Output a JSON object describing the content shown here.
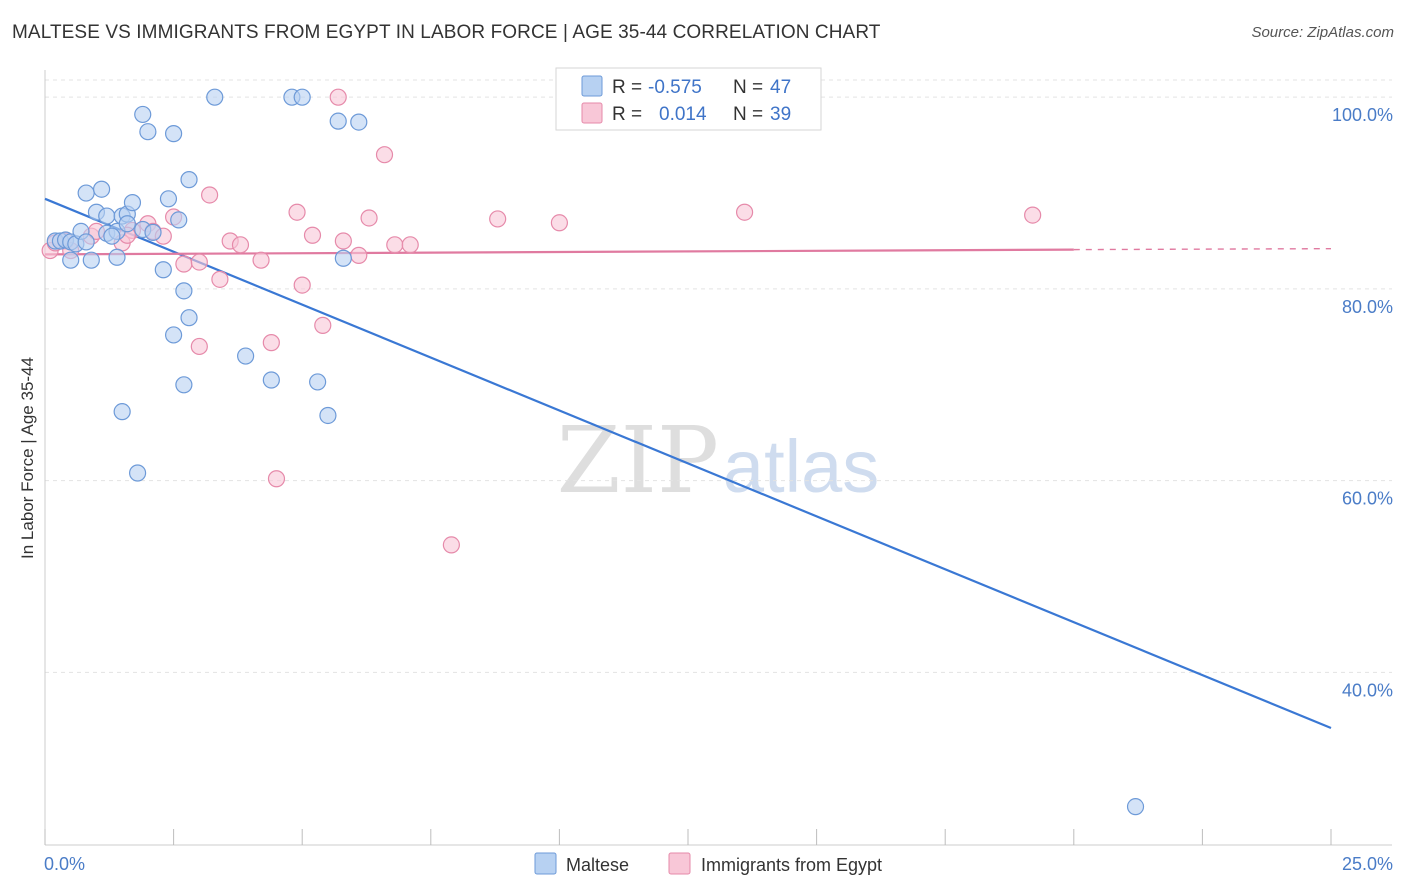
{
  "chart_data": {
    "type": "scatter",
    "title": "MALTESE VS IMMIGRANTS FROM EGYPT IN LABOR FORCE | AGE 35-44 CORRELATION CHART",
    "source": "Source: ZipAtlas.com",
    "xlabel": "",
    "ylabel": "In Labor Force | Age 35-44",
    "xlim": [
      0,
      25
    ],
    "ylim": [
      22,
      102
    ],
    "x_tick_labels": [
      "0.0%",
      "25.0%"
    ],
    "y_ticks": [
      40,
      60,
      80,
      100
    ],
    "y_tick_labels": [
      "40.0%",
      "60.0%",
      "80.0%",
      "100.0%"
    ],
    "watermark": "ZIPatlas",
    "colors": {
      "maltese_fill": "#b7d1f2",
      "maltese_stroke": "#6d9ad8",
      "maltese_line": "#3a78d4",
      "egypt_fill": "#f8c7d7",
      "egypt_stroke": "#e68aaa",
      "egypt_line": "#e07aa0"
    },
    "legend": {
      "rows": [
        {
          "r_label": "R =",
          "r_value": "-0.575",
          "n_label": "N =",
          "n_value": "47"
        },
        {
          "r_label": "R =",
          "r_value": "0.014",
          "n_label": "N =",
          "n_value": "39"
        }
      ]
    },
    "series": [
      {
        "name": "Maltese",
        "points": [
          [
            0.2,
            85.0
          ],
          [
            0.3,
            85.0
          ],
          [
            0.4,
            85.1
          ],
          [
            0.5,
            84.9
          ],
          [
            0.6,
            84.7
          ],
          [
            0.5,
            83.0
          ],
          [
            0.7,
            86.0
          ],
          [
            0.8,
            84.9
          ],
          [
            0.9,
            83.0
          ],
          [
            1.0,
            88.0
          ],
          [
            0.8,
            90.0
          ],
          [
            1.1,
            90.4
          ],
          [
            1.2,
            85.8
          ],
          [
            1.2,
            87.6
          ],
          [
            1.4,
            83.3
          ],
          [
            1.4,
            86.0
          ],
          [
            1.5,
            87.6
          ],
          [
            1.6,
            87.8
          ],
          [
            1.7,
            89.0
          ],
          [
            1.6,
            86.8
          ],
          [
            1.9,
            86.2
          ],
          [
            1.9,
            98.2
          ],
          [
            2.0,
            96.4
          ],
          [
            2.3,
            82.0
          ],
          [
            2.4,
            89.4
          ],
          [
            2.5,
            75.2
          ],
          [
            2.6,
            87.2
          ],
          [
            2.5,
            96.2
          ],
          [
            2.7,
            79.8
          ],
          [
            2.7,
            70.0
          ],
          [
            2.8,
            91.4
          ],
          [
            2.8,
            77.0
          ],
          [
            3.3,
            100.0
          ],
          [
            3.9,
            73.0
          ],
          [
            4.4,
            70.5
          ],
          [
            4.8,
            100.0
          ],
          [
            5.0,
            100.0
          ],
          [
            5.3,
            70.3
          ],
          [
            5.5,
            66.8
          ],
          [
            5.7,
            97.5
          ],
          [
            5.8,
            83.2
          ],
          [
            6.1,
            97.4
          ],
          [
            1.5,
            67.2
          ],
          [
            1.8,
            60.8
          ],
          [
            1.3,
            85.5
          ],
          [
            21.2,
            26.0
          ],
          [
            2.1,
            85.9
          ]
        ],
        "trend": {
          "x": [
            0.0,
            25.0
          ],
          "y": [
            89.4,
            34.2
          ]
        }
      },
      {
        "name": "Immigrants from Egypt",
        "points": [
          [
            0.1,
            84.0
          ],
          [
            0.2,
            84.8
          ],
          [
            0.4,
            85.0
          ],
          [
            0.5,
            84.0
          ],
          [
            0.9,
            85.5
          ],
          [
            1.0,
            86.0
          ],
          [
            1.5,
            84.8
          ],
          [
            1.7,
            86.1
          ],
          [
            2.0,
            86.8
          ],
          [
            2.1,
            86.0
          ],
          [
            2.3,
            85.5
          ],
          [
            2.5,
            87.5
          ],
          [
            2.7,
            82.6
          ],
          [
            3.0,
            82.8
          ],
          [
            3.0,
            74.0
          ],
          [
            3.2,
            89.8
          ],
          [
            3.4,
            81.0
          ],
          [
            3.6,
            85.0
          ],
          [
            3.8,
            84.6
          ],
          [
            4.2,
            83.0
          ],
          [
            4.4,
            74.4
          ],
          [
            4.5,
            60.2
          ],
          [
            4.9,
            88.0
          ],
          [
            5.0,
            80.4
          ],
          [
            5.2,
            85.6
          ],
          [
            5.4,
            76.2
          ],
          [
            5.7,
            100.0
          ],
          [
            5.8,
            85.0
          ],
          [
            6.1,
            83.5
          ],
          [
            6.3,
            87.4
          ],
          [
            6.6,
            94.0
          ],
          [
            6.8,
            84.6
          ],
          [
            7.1,
            84.6
          ],
          [
            7.9,
            53.3
          ],
          [
            8.8,
            87.3
          ],
          [
            10.0,
            86.9
          ],
          [
            13.6,
            88.0
          ],
          [
            19.2,
            87.7
          ],
          [
            1.6,
            85.6
          ]
        ],
        "trend": {
          "x": [
            0.0,
            20.0
          ],
          "y": [
            83.6,
            84.1
          ]
        },
        "trend_dashed": {
          "x": [
            20.0,
            25.0
          ],
          "y": [
            84.1,
            84.2
          ]
        }
      }
    ]
  }
}
